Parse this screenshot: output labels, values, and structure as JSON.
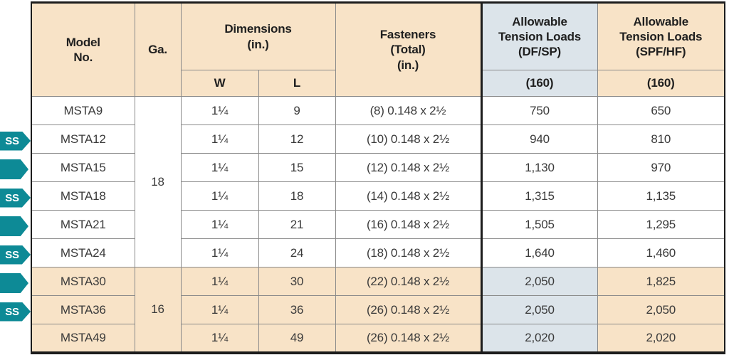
{
  "colors": {
    "tan": "#f8e3c7",
    "blue": "#dce4ea",
    "teal": "#0d8a96",
    "border_dark": "#1c1c1c",
    "border_gray": "#8a8a8a"
  },
  "badges": {
    "ss_label": "SS"
  },
  "table": {
    "header": {
      "model": "Model\nNo.",
      "ga": "Ga.",
      "dimensions": "Dimensions\n(in.)",
      "w": "W",
      "l": "L",
      "fasteners": "Fasteners\n(Total)\n(in.)",
      "df": "Allowable\nTension Loads\n(DF/SP)",
      "spf": "Allowable\nTension Loads\n(SPF/HF)",
      "df_load_duration": "(160)",
      "spf_load_duration": "(160)"
    },
    "ga_groups": [
      {
        "value": "18",
        "span": 6
      },
      {
        "value": "16",
        "span": 3
      }
    ],
    "rows": [
      {
        "badge": null,
        "model": "MSTA9",
        "w": "1¼",
        "l": "9",
        "fasteners": "(8) 0.148 x 2½",
        "df": "750",
        "spf": "650",
        "shade": "white"
      },
      {
        "badge": "ss",
        "model": "MSTA12",
        "w": "1¼",
        "l": "12",
        "fasteners": "(10) 0.148 x 2½",
        "df": "940",
        "spf": "810",
        "shade": "white"
      },
      {
        "badge": "arrow",
        "model": "MSTA15",
        "w": "1¼",
        "l": "15",
        "fasteners": "(12) 0.148 x 2½",
        "df": "1,130",
        "spf": "970",
        "shade": "white"
      },
      {
        "badge": "ss",
        "model": "MSTA18",
        "w": "1¼",
        "l": "18",
        "fasteners": "(14) 0.148 x 2½",
        "df": "1,315",
        "spf": "1,135",
        "shade": "white"
      },
      {
        "badge": "arrow",
        "model": "MSTA21",
        "w": "1¼",
        "l": "21",
        "fasteners": "(16) 0.148 x 2½",
        "df": "1,505",
        "spf": "1,295",
        "shade": "white"
      },
      {
        "badge": "ss",
        "model": "MSTA24",
        "w": "1¼",
        "l": "24",
        "fasteners": "(18) 0.148 x 2½",
        "df": "1,640",
        "spf": "1,460",
        "shade": "white"
      },
      {
        "badge": "arrow",
        "model": "MSTA30",
        "w": "1¼",
        "l": "30",
        "fasteners": "(22) 0.148 x 2½",
        "df": "2,050",
        "spf": "1,825",
        "shade": "tan"
      },
      {
        "badge": "ss",
        "model": "MSTA36",
        "w": "1¼",
        "l": "36",
        "fasteners": "(26) 0.148 x 2½",
        "df": "2,050",
        "spf": "2,050",
        "shade": "tan"
      },
      {
        "badge": null,
        "model": "MSTA49",
        "w": "1¼",
        "l": "49",
        "fasteners": "(26) 0.148 x 2½",
        "df": "2,020",
        "spf": "2,020",
        "shade": "tan"
      }
    ]
  }
}
